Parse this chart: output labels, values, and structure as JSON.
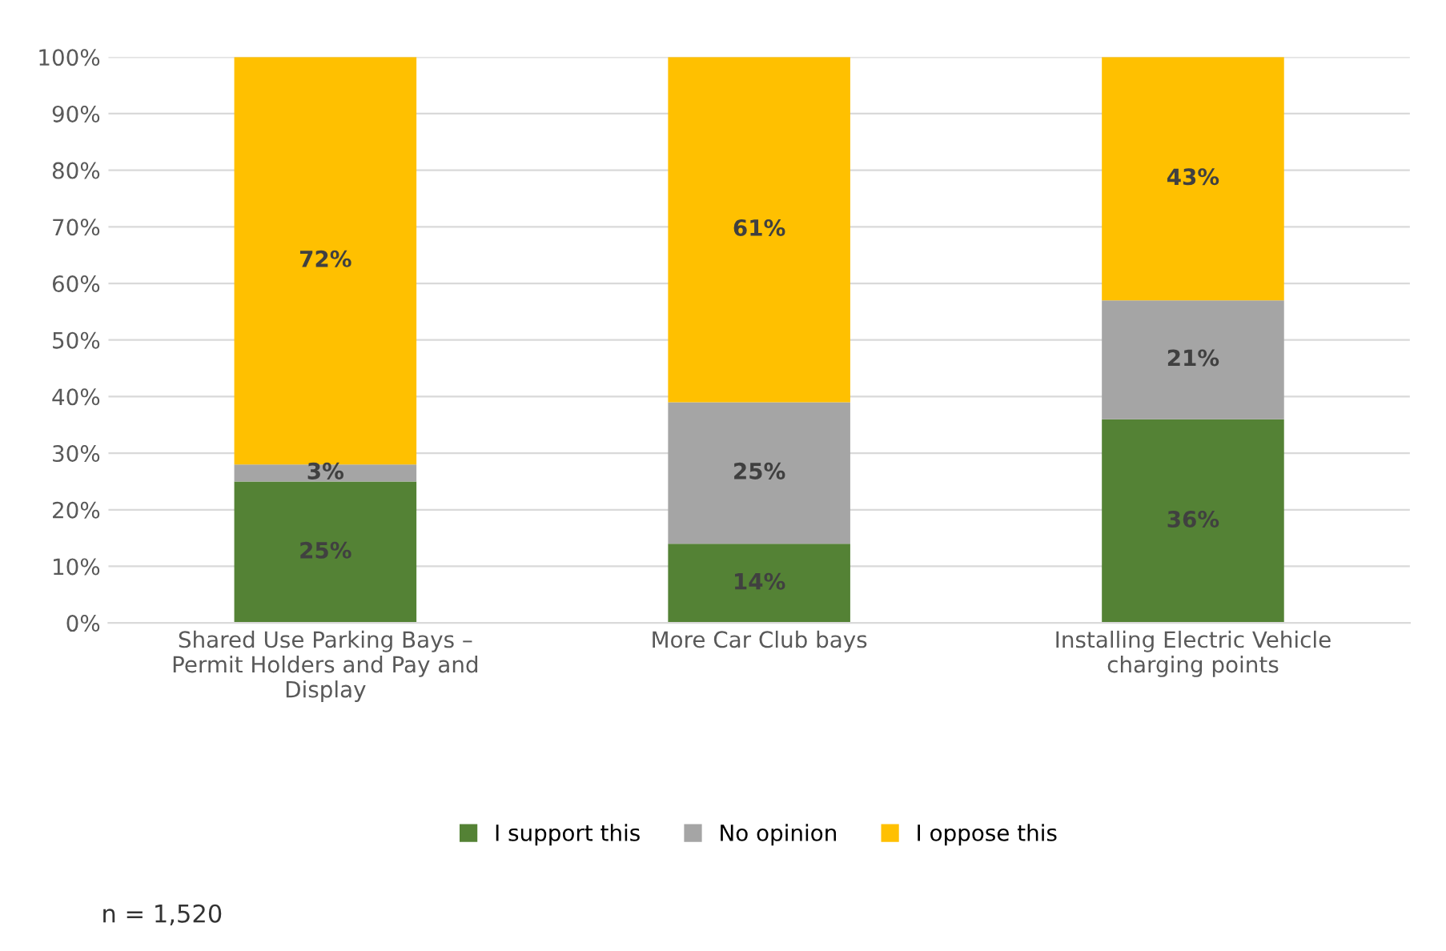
{
  "chart_data": {
    "type": "bar",
    "stacked": true,
    "categories": [
      "Shared Use Parking Bays – Permit Holders and Pay and Display",
      "More Car Club bays",
      "Installing Electric Vehicle charging points"
    ],
    "series": [
      {
        "name": "I support this",
        "color": "#548235",
        "values": [
          25,
          14,
          36
        ],
        "value_labels": [
          "25%",
          "14%",
          "36%"
        ]
      },
      {
        "name": "No opinion",
        "color": "#a5a5a5",
        "values": [
          3,
          25,
          21
        ],
        "value_labels": [
          "3%",
          "25%",
          "21%"
        ]
      },
      {
        "name": "I oppose this",
        "color": "#ffc000",
        "values": [
          72,
          61,
          43
        ],
        "value_labels": [
          "72%",
          "61%",
          "43%"
        ]
      }
    ],
    "ylim": [
      0,
      100
    ],
    "yticks": [
      {
        "value": 0,
        "label": "0%"
      },
      {
        "value": 10,
        "label": "10%"
      },
      {
        "value": 20,
        "label": "20%"
      },
      {
        "value": 30,
        "label": "30%"
      },
      {
        "value": 40,
        "label": "40%"
      },
      {
        "value": 50,
        "label": "50%"
      },
      {
        "value": 60,
        "label": "60%"
      },
      {
        "value": 70,
        "label": "70%"
      },
      {
        "value": 80,
        "label": "80%"
      },
      {
        "value": 90,
        "label": "90%"
      },
      {
        "value": 100,
        "label": "100%"
      }
    ],
    "grid": "y",
    "legend": "bottom",
    "annotations": [
      "n = 1,520"
    ]
  }
}
